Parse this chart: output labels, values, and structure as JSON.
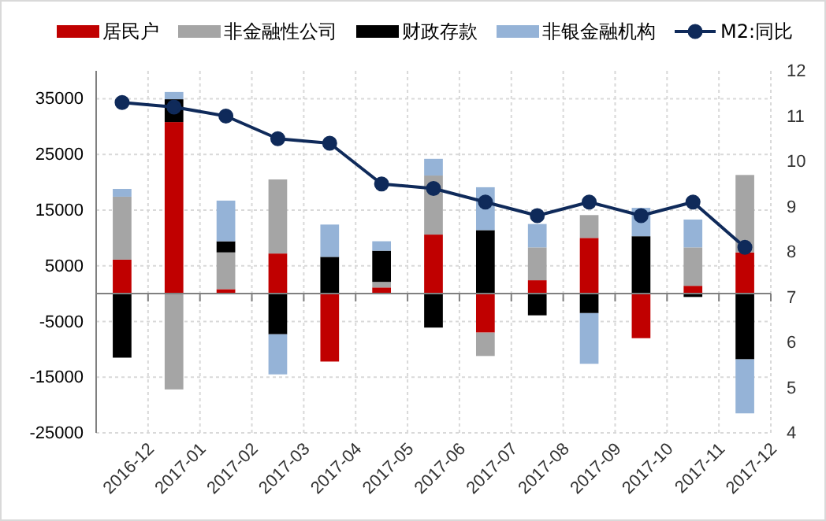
{
  "chart_data": {
    "type": "bar",
    "stacked": true,
    "legend": "top",
    "grid": true,
    "marker": "circle",
    "categories": [
      "2016-12",
      "2017-01",
      "2017-02",
      "2017-03",
      "2017-04",
      "2017-05",
      "2017-06",
      "2017-07",
      "2017-08",
      "2017-09",
      "2017-10",
      "2017-11",
      "2017-12"
    ],
    "series": [
      {
        "name": "居民户",
        "color": "#c00000",
        "values": [
          6100,
          30800,
          800,
          7200,
          -12200,
          1100,
          10600,
          -7000,
          2400,
          10000,
          -8000,
          1400,
          7400
        ]
      },
      {
        "name": "非金融性公司",
        "color": "#a5a5a5",
        "values": [
          11300,
          -17200,
          6600,
          13300,
          null,
          1000,
          10600,
          -4200,
          5900,
          4100,
          null,
          6900,
          13900
        ]
      },
      {
        "name": "财政存款",
        "color": "#000000",
        "values": [
          -11500,
          4100,
          2000,
          -7300,
          6600,
          5600,
          -6100,
          11400,
          -3900,
          -3500,
          10300,
          -600,
          -11800
        ]
      },
      {
        "name": "非银金融机构",
        "color": "#95b3d7",
        "values": [
          1400,
          1300,
          7300,
          -7200,
          5800,
          1700,
          3000,
          7700,
          4200,
          -9100,
          5100,
          5000,
          -9700
        ]
      },
      {
        "name": "M2:同比",
        "type": "line",
        "axis": "y2",
        "color": "#0f2a5a",
        "values": [
          11.3,
          11.2,
          11.0,
          10.5,
          10.4,
          9.5,
          9.4,
          9.1,
          8.8,
          9.1,
          8.8,
          9.1,
          8.1
        ]
      }
    ],
    "ylim": [
      -25000,
      40000
    ],
    "yticks": [
      -25000,
      -15000,
      -5000,
      5000,
      15000,
      25000,
      35000
    ],
    "y2lim": [
      4,
      12
    ],
    "y2ticks": [
      4,
      5,
      6,
      7,
      8,
      9,
      10,
      11,
      12
    ]
  }
}
